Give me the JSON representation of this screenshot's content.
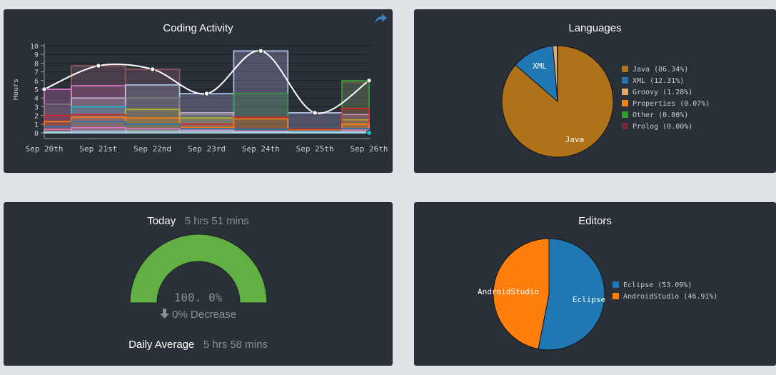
{
  "activity": {
    "title": "Coding Activity",
    "share_icon": "share-icon",
    "chart_data": {
      "type": "bar",
      "title": "Coding Activity",
      "ylabel": "Hours",
      "ylim": [
        0,
        10
      ],
      "yticks": [
        0,
        1,
        2,
        3,
        4,
        5,
        6,
        7,
        8,
        9,
        10
      ],
      "categories": [
        "Sep 20th",
        "Sep 21st",
        "Sep 22nd",
        "Sep 23rd",
        "Sep 24th",
        "Sep 25th",
        "Sep 26th"
      ],
      "stacked_outlines": [
        {
          "color": "#9467bd",
          "values": [
            5.0,
            7.7,
            7.3,
            4.5,
            9.4,
            2.3,
            6.0
          ]
        },
        {
          "color": "#8c564b",
          "values": [
            0,
            7.7,
            7.3,
            0,
            0,
            0,
            5.8
          ]
        },
        {
          "color": "#e377c2",
          "values": [
            5.0,
            5.4,
            0,
            0,
            0,
            0,
            0
          ]
        },
        {
          "color": "#aec7e8",
          "values": [
            0,
            0,
            5.5,
            4.5,
            9.4,
            2.3,
            0
          ]
        },
        {
          "color": "#2ca02c",
          "values": [
            0,
            0,
            0,
            0,
            4.5,
            0,
            6.0
          ]
        },
        {
          "color": "#7f7f7f",
          "values": [
            3.3,
            4.0,
            4.0,
            2.1,
            0,
            0,
            2.1
          ]
        },
        {
          "color": "#c5b0d5",
          "values": [
            0,
            4.0,
            0,
            2.3,
            0,
            0,
            2.1
          ]
        },
        {
          "color": "#17becf",
          "values": [
            0,
            3.0,
            0,
            0,
            0,
            0,
            0
          ]
        },
        {
          "color": "#bcbd22",
          "values": [
            0,
            0,
            2.7,
            1.7,
            0,
            0,
            1.5
          ]
        },
        {
          "color": "#d62728",
          "values": [
            2.0,
            2.1,
            0,
            1.0,
            1.8,
            0.4,
            2.8
          ]
        },
        {
          "color": "#ff7f0e",
          "values": [
            1.3,
            1.8,
            1.7,
            0.6,
            1.6,
            0.3,
            1.0
          ]
        },
        {
          "color": "#1f77b4",
          "values": [
            0.7,
            1.3,
            1.0,
            0.5,
            0.4,
            0.2,
            0.5
          ]
        },
        {
          "color": "#e377c2",
          "values": [
            0.4,
            0.6,
            0.5,
            0.3,
            0.2,
            0.1,
            0.3
          ]
        },
        {
          "color": "#9edae5",
          "values": [
            0.1,
            0.2,
            0.2,
            0.2,
            0.1,
            0.1,
            0.1
          ]
        }
      ],
      "total_line": {
        "values": [
          5.0,
          7.7,
          7.3,
          4.5,
          9.4,
          2.3,
          6.0
        ],
        "color": "#ffffff"
      },
      "last_point_zero": 0
    }
  },
  "languages": {
    "title": "Languages",
    "chart_data": {
      "type": "pie",
      "slices": [
        {
          "label": "Java",
          "legend": "Java (86.34%)",
          "value": 86.34,
          "color": "#b07218",
          "show_label": true
        },
        {
          "label": "XML",
          "legend": "XML (12.31%)",
          "value": 12.31,
          "color": "#1f77b4",
          "show_label": true
        },
        {
          "label": "Groovy",
          "legend": "Groovy (1.28%)",
          "value": 1.28,
          "color": "#e8a96b",
          "show_label": false
        },
        {
          "label": "Properties",
          "legend": "Properties (0.07%)",
          "value": 0.07,
          "color": "#ff7f0e",
          "show_label": false
        },
        {
          "label": "Other",
          "legend": "Other (0.00%)",
          "value": 0.0,
          "color": "#2ca02c",
          "show_label": false
        },
        {
          "label": "Prolog",
          "legend": "Prolog (0.00%)",
          "value": 0.0,
          "color": "#74283c",
          "show_label": false
        }
      ]
    }
  },
  "today": {
    "label": "Today",
    "value": "5 hrs 51 mins",
    "gauge_percent": "100. 0%",
    "gauge_fraction": 1.0,
    "gauge_color": "#62b044",
    "change_icon": "arrow-down-icon",
    "change_text": "0% Decrease",
    "avg_label": "Daily Average",
    "avg_value": "5 hrs 58 mins"
  },
  "editors": {
    "title": "Editors",
    "chart_data": {
      "type": "pie",
      "slices": [
        {
          "label": "Eclipse",
          "legend": "Eclipse (53.09%)",
          "value": 53.09,
          "color": "#1f77b4",
          "show_label": true
        },
        {
          "label": "AndroidStudio",
          "legend": "AndroidStudio (46.91%)",
          "value": 46.91,
          "color": "#ff7f0e",
          "show_label": true
        }
      ]
    }
  }
}
